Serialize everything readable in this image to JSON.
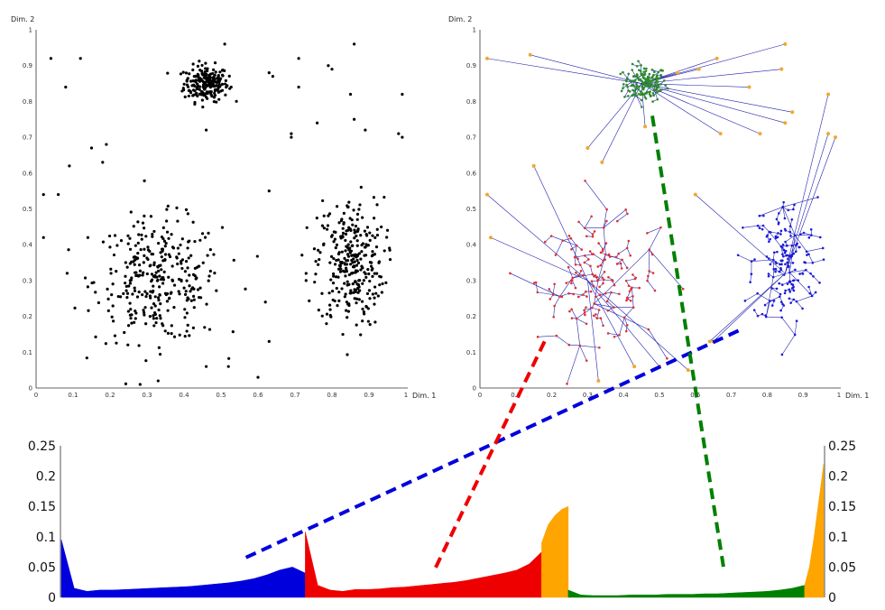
{
  "chart_data": [
    {
      "type": "scatter",
      "xlabel": "Dim. 1",
      "ylabel": "Dim. 2",
      "xlim": [
        0,
        1
      ],
      "ylim": [
        0,
        1
      ],
      "xticks": [
        "0",
        "0.1",
        "0.2",
        "0.3",
        "0.4",
        "0.5",
        "0.6",
        "0.7",
        "0.8",
        "0.9",
        "1"
      ],
      "yticks": [
        "0",
        "0.1",
        "0.2",
        "0.3",
        "0.4",
        "0.5",
        "0.6",
        "0.7",
        "0.8",
        "0.9",
        "1"
      ],
      "grid": false,
      "point_color": "#000000",
      "clusters": [
        {
          "center": [
            0.46,
            0.85
          ],
          "spread": [
            0.03,
            0.025
          ],
          "count": 220
        },
        {
          "center": [
            0.33,
            0.3
          ],
          "spread": [
            0.085,
            0.085
          ],
          "count": 330
        },
        {
          "center": [
            0.85,
            0.35
          ],
          "spread": [
            0.045,
            0.09
          ],
          "count": 300
        }
      ],
      "outliers": [
        [
          0.04,
          0.92
        ],
        [
          0.12,
          0.92
        ],
        [
          0.08,
          0.84
        ],
        [
          0.15,
          0.67
        ],
        [
          0.09,
          0.62
        ],
        [
          0.06,
          0.54
        ],
        [
          0.19,
          0.68
        ],
        [
          0.18,
          0.63
        ],
        [
          0.46,
          0.72
        ],
        [
          0.51,
          0.96
        ],
        [
          0.63,
          0.88
        ],
        [
          0.64,
          0.87
        ],
        [
          0.71,
          0.92
        ],
        [
          0.71,
          0.84
        ],
        [
          0.79,
          0.9
        ],
        [
          0.8,
          0.89
        ],
        [
          0.86,
          0.96
        ],
        [
          0.85,
          0.82
        ],
        [
          0.86,
          0.75
        ],
        [
          0.89,
          0.72
        ],
        [
          0.76,
          0.74
        ],
        [
          0.69,
          0.71
        ],
        [
          0.69,
          0.7
        ],
        [
          0.99,
          0.82
        ],
        [
          0.98,
          0.71
        ],
        [
          0.99,
          0.7
        ],
        [
          0.02,
          0.54
        ],
        [
          0.02,
          0.42
        ],
        [
          0.14,
          0.42
        ],
        [
          0.63,
          0.55
        ],
        [
          0.73,
          0.32
        ],
        [
          0.73,
          0.3
        ],
        [
          0.62,
          0.24
        ],
        [
          0.63,
          0.13
        ],
        [
          0.6,
          0.03
        ],
        [
          0.52,
          0.06
        ],
        [
          0.46,
          0.06
        ],
        [
          0.33,
          0.02
        ]
      ]
    },
    {
      "type": "scatter",
      "subtype": "minimum-spanning-tree",
      "xlabel": "Dim. 1",
      "ylabel": "Dim. 2",
      "xlim": [
        0,
        1
      ],
      "ylim": [
        0,
        1
      ],
      "xticks": [
        "0",
        "0.1",
        "0.2",
        "0.3",
        "0.4",
        "0.5",
        "0.6",
        "0.7",
        "0.8",
        "0.9",
        "1"
      ],
      "yticks": [
        "0",
        "0.1",
        "0.2",
        "0.3",
        "0.4",
        "0.5",
        "0.6",
        "0.7",
        "0.8",
        "0.9",
        "1"
      ],
      "grid": false,
      "edge_color": "#2020b0",
      "node_colors": {
        "green_cluster": "#2e8b2e",
        "red_cluster": "#e03030",
        "blue_cluster": "#1a1adc",
        "outlier": "#f0a830"
      },
      "outliers": [
        [
          0.02,
          0.92
        ],
        [
          0.14,
          0.93
        ],
        [
          0.3,
          0.67
        ],
        [
          0.34,
          0.63
        ],
        [
          0.46,
          0.73
        ],
        [
          0.55,
          0.88
        ],
        [
          0.61,
          0.89
        ],
        [
          0.66,
          0.92
        ],
        [
          0.75,
          0.84
        ],
        [
          0.84,
          0.89
        ],
        [
          0.85,
          0.96
        ],
        [
          0.97,
          0.82
        ],
        [
          0.99,
          0.7
        ],
        [
          0.97,
          0.71
        ],
        [
          0.87,
          0.77
        ],
        [
          0.85,
          0.74
        ],
        [
          0.78,
          0.71
        ],
        [
          0.67,
          0.71
        ],
        [
          0.02,
          0.54
        ],
        [
          0.03,
          0.42
        ],
        [
          0.15,
          0.62
        ],
        [
          0.6,
          0.54
        ],
        [
          0.65,
          0.13
        ],
        [
          0.64,
          0.13
        ],
        [
          0.58,
          0.05
        ],
        [
          0.5,
          0.06
        ],
        [
          0.43,
          0.06
        ],
        [
          0.33,
          0.02
        ]
      ]
    },
    {
      "type": "area",
      "ylim": [
        0,
        0.25
      ],
      "yticks": [
        "0",
        "0.05",
        "0.1",
        "0.15",
        "0.2",
        "0.25"
      ],
      "grid": false,
      "segments": [
        {
          "color": "#0000dd",
          "start": 0.0,
          "end": 0.32,
          "values": [
            0.095,
            0.015,
            0.01,
            0.012,
            0.012,
            0.013,
            0.014,
            0.015,
            0.016,
            0.017,
            0.018,
            0.02,
            0.022,
            0.024,
            0.027,
            0.031,
            0.037,
            0.045,
            0.05,
            0.04
          ]
        },
        {
          "color": "#ee0000",
          "start": 0.32,
          "end": 0.63,
          "values": [
            0.108,
            0.02,
            0.012,
            0.01,
            0.013,
            0.013,
            0.014,
            0.016,
            0.017,
            0.019,
            0.021,
            0.023,
            0.025,
            0.028,
            0.032,
            0.036,
            0.04,
            0.045,
            0.055,
            0.075
          ]
        },
        {
          "color": "#ffa500",
          "start": 0.63,
          "end": 0.665,
          "values": [
            0.09,
            0.12,
            0.135,
            0.145,
            0.15
          ]
        },
        {
          "color": "#008000",
          "start": 0.665,
          "end": 0.975,
          "values": [
            0.012,
            0.004,
            0.003,
            0.003,
            0.003,
            0.004,
            0.004,
            0.004,
            0.005,
            0.005,
            0.005,
            0.006,
            0.006,
            0.007,
            0.008,
            0.009,
            0.01,
            0.012,
            0.015,
            0.02
          ]
        },
        {
          "color": "#ffa500",
          "start": 0.975,
          "end": 1.0,
          "values": [
            0.02,
            0.05,
            0.1,
            0.16,
            0.22
          ]
        }
      ]
    }
  ],
  "connectors": [
    {
      "color": "#0000dd",
      "from": "blue_cluster",
      "to": "blue_segment"
    },
    {
      "color": "#ee0000",
      "from": "red_cluster",
      "to": "red_segment"
    },
    {
      "color": "#008000",
      "from": "green_cluster",
      "to": "green_segment"
    }
  ]
}
